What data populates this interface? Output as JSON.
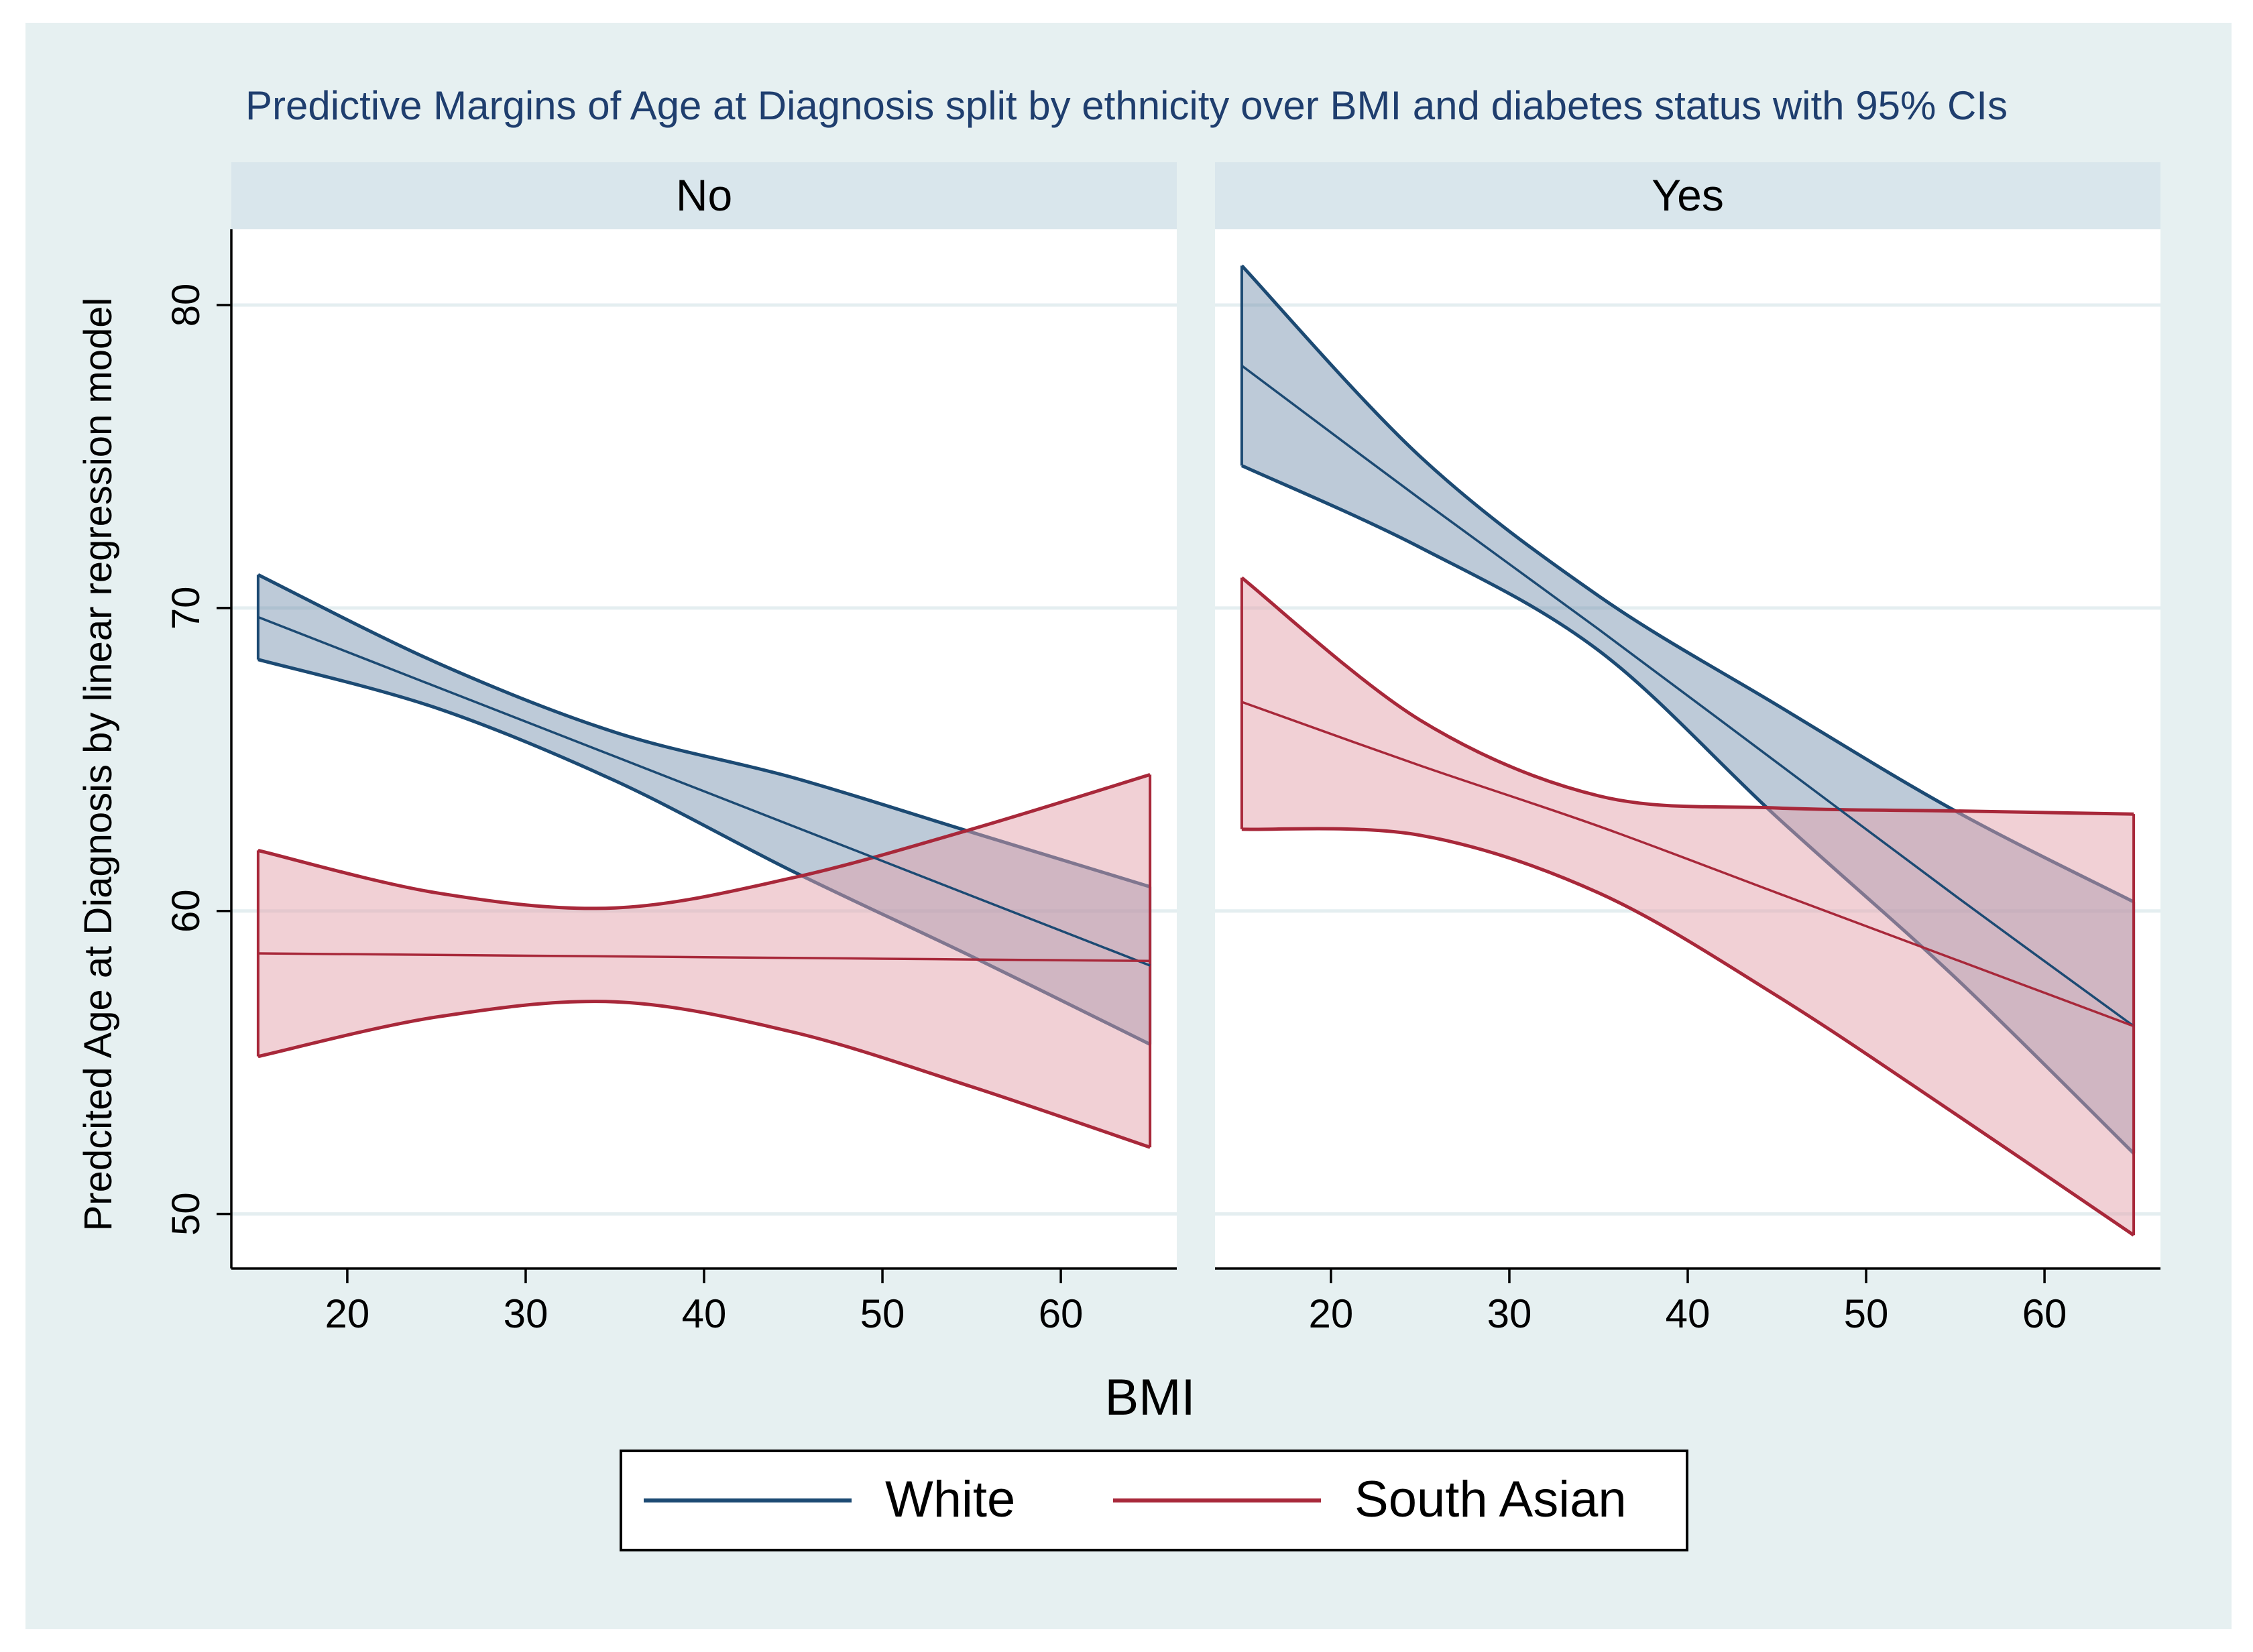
{
  "colors": {
    "outer_bg": "#e6f0f1",
    "plot_bg": "#ffffff",
    "strip_bg": "#d9e6ec",
    "grid": "#e4eef0",
    "title": "#1f3e6e",
    "axis": "#000000",
    "white_line": "#1c4a73",
    "white_fill": "#6c8aa8",
    "south_asian_line": "#a8283a",
    "south_asian_fill": "#e3a2ac"
  },
  "chart_data": {
    "type": "line",
    "title": "Predictive Margins of Age at Diagnosis split by ethnicity over BMI and diabetes status with 95% CIs",
    "xlabel": "BMI",
    "ylabel": "Predcited Age at Diagnosis by linear regression model",
    "xlim": [
      13.5,
      66.5
    ],
    "ylim": [
      48.2,
      82.5
    ],
    "xticks": [
      20,
      30,
      40,
      50,
      60
    ],
    "yticks": [
      50,
      60,
      70,
      80
    ],
    "legend": {
      "placement": "bottom",
      "items": [
        {
          "label": "White",
          "color": "#1c4a73"
        },
        {
          "label": "South Asian",
          "color": "#a8283a"
        }
      ]
    },
    "panels": [
      {
        "label": "No",
        "series": [
          {
            "name": "White",
            "x": [
              15,
              25,
              35,
              45,
              55,
              65
            ],
            "y": [
              69.7,
              67.4,
              65.1,
              62.8,
              60.5,
              58.2
            ],
            "lower": [
              68.3,
              66.7,
              64.3,
              61.3,
              58.5,
              55.6
            ],
            "upper": [
              71.1,
              68.2,
              65.9,
              64.4,
              62.6,
              60.8
            ]
          },
          {
            "name": "South Asian",
            "x": [
              15,
              25,
              35,
              45,
              55,
              65
            ],
            "y": [
              58.6,
              58.55,
              58.5,
              58.45,
              58.4,
              58.35
            ],
            "lower": [
              55.2,
              56.5,
              57.0,
              56.0,
              54.2,
              52.2
            ],
            "upper": [
              62.0,
              60.6,
              60.1,
              61.1,
              62.7,
              64.5
            ]
          }
        ]
      },
      {
        "label": "Yes",
        "series": [
          {
            "name": "White",
            "x": [
              15,
              25,
              35,
              45,
              55,
              65
            ],
            "y": [
              78.0,
              73.6,
              69.3,
              64.9,
              60.5,
              56.2
            ],
            "lower": [
              74.7,
              72.0,
              68.6,
              63.1,
              57.8,
              52.0
            ],
            "upper": [
              81.3,
              75.0,
              70.4,
              66.8,
              63.3,
              60.3
            ]
          },
          {
            "name": "South Asian",
            "x": [
              15,
              25,
              35,
              45,
              55,
              65
            ],
            "y": [
              66.9,
              64.8,
              62.8,
              60.6,
              58.4,
              56.2
            ],
            "lower": [
              62.7,
              62.5,
              60.6,
              57.2,
              53.3,
              49.3
            ],
            "upper": [
              71.0,
              66.3,
              63.8,
              63.4,
              63.3,
              63.2
            ]
          }
        ]
      }
    ]
  }
}
